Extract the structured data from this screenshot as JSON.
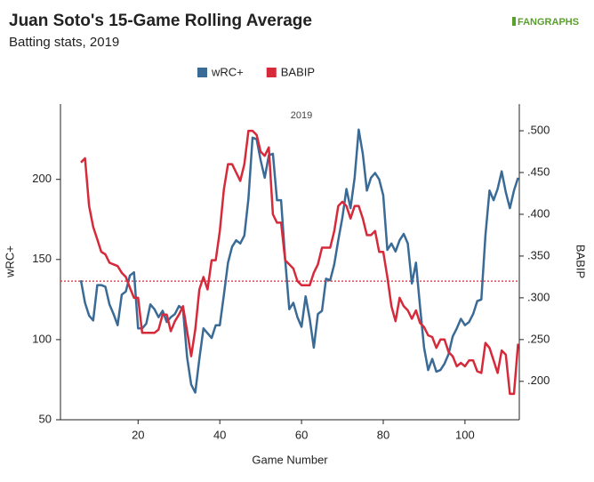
{
  "chart_data": {
    "type": "line",
    "title": "Juan Soto's 15-Game Rolling Average",
    "subtitle": "Batting stats, 2019",
    "logo": "FANGRAPHS",
    "annotation": "2019",
    "xlabel": "Game Number",
    "ylabel": "wRC+",
    "y2label": "BABIP",
    "x": [
      6,
      7,
      8,
      9,
      10,
      11,
      12,
      13,
      14,
      15,
      16,
      17,
      18,
      19,
      20,
      21,
      22,
      23,
      24,
      25,
      26,
      27,
      28,
      29,
      30,
      31,
      32,
      33,
      34,
      35,
      36,
      37,
      38,
      39,
      40,
      41,
      42,
      43,
      44,
      45,
      46,
      47,
      48,
      49,
      50,
      51,
      52,
      53,
      54,
      55,
      56,
      57,
      58,
      59,
      60,
      61,
      62,
      63,
      64,
      65,
      66,
      67,
      68,
      69,
      70,
      71,
      72,
      73,
      74,
      75,
      76,
      77,
      78,
      79,
      80,
      81,
      82,
      83,
      84,
      85,
      86,
      87,
      88,
      89,
      90,
      91,
      92,
      93,
      94,
      95,
      96,
      97,
      98,
      99,
      100,
      101,
      102,
      103,
      104,
      105,
      106,
      107,
      108,
      109,
      110,
      111,
      112,
      113
    ],
    "series": [
      {
        "name": "wRC+",
        "color": "#3a6a96",
        "values": [
          137,
          123,
          115,
          112,
          134,
          134,
          133,
          122,
          116,
          109,
          128,
          130,
          140,
          142,
          107,
          107,
          110,
          122,
          119,
          114,
          118,
          111,
          114,
          116,
          121,
          119,
          89,
          72,
          67,
          88,
          107,
          104,
          101,
          109,
          109,
          128,
          148,
          158,
          162,
          160,
          165,
          188,
          226,
          225,
          212,
          201,
          215,
          216,
          187,
          187,
          150,
          119,
          123,
          114,
          108,
          127,
          113,
          95,
          116,
          118,
          138,
          137,
          147,
          162,
          176,
          194,
          182,
          201,
          231,
          216,
          193,
          201,
          204,
          200,
          190,
          156,
          160,
          155,
          162,
          166,
          160,
          135,
          148,
          121,
          95,
          81,
          88,
          80,
          81,
          85,
          91,
          102,
          107,
          113,
          109,
          111,
          116,
          124,
          125,
          165,
          193,
          187,
          194,
          205,
          192,
          182,
          193,
          201
        ]
      },
      {
        "name": "BABIP",
        "color": "#d62a3a",
        "axis": "y2",
        "values": [
          0.462,
          0.467,
          0.41,
          0.385,
          0.37,
          0.355,
          0.352,
          0.342,
          0.34,
          0.338,
          0.33,
          0.325,
          0.312,
          0.3,
          0.3,
          0.258,
          0.258,
          0.258,
          0.258,
          0.262,
          0.28,
          0.28,
          0.26,
          0.272,
          0.28,
          0.29,
          0.26,
          0.23,
          0.262,
          0.31,
          0.325,
          0.31,
          0.345,
          0.345,
          0.38,
          0.43,
          0.46,
          0.46,
          0.45,
          0.44,
          0.46,
          0.5,
          0.5,
          0.495,
          0.475,
          0.47,
          0.48,
          0.4,
          0.39,
          0.39,
          0.345,
          0.34,
          0.335,
          0.32,
          0.315,
          0.315,
          0.315,
          0.33,
          0.34,
          0.36,
          0.36,
          0.36,
          0.38,
          0.41,
          0.415,
          0.41,
          0.395,
          0.41,
          0.41,
          0.395,
          0.375,
          0.375,
          0.38,
          0.355,
          0.355,
          0.325,
          0.29,
          0.272,
          0.3,
          0.29,
          0.285,
          0.275,
          0.285,
          0.27,
          0.265,
          0.255,
          0.253,
          0.24,
          0.25,
          0.25,
          0.235,
          0.23,
          0.218,
          0.222,
          0.218,
          0.225,
          0.225,
          0.212,
          0.21,
          0.246,
          0.24,
          0.225,
          0.21,
          0.237,
          0.232,
          0.185,
          0.185,
          0.245
        ]
      }
    ],
    "reference_line": {
      "axis": "y2",
      "value": 0.32,
      "color": "#d62a3a"
    },
    "xlim": [
      1,
      113.3
    ],
    "xticks": [
      20,
      40,
      60,
      80,
      100
    ],
    "ylim": [
      50,
      247
    ],
    "yticks": [
      50,
      100,
      150,
      200
    ],
    "y2lim": [
      0.154,
      0.532
    ],
    "y2ticks": [
      {
        "value": 0.2,
        "label": ".200"
      },
      {
        "value": 0.25,
        "label": ".250"
      },
      {
        "value": 0.3,
        "label": ".300"
      },
      {
        "value": 0.35,
        "label": ".350"
      },
      {
        "value": 0.4,
        "label": ".400"
      },
      {
        "value": 0.45,
        "label": ".450"
      },
      {
        "value": 0.5,
        "label": ".500"
      }
    ],
    "legend": "top"
  }
}
